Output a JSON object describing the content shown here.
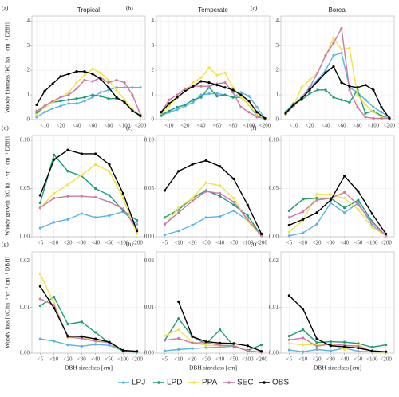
{
  "chart_data": [
    {
      "type": "line",
      "panel_label": "(a)",
      "title": "Tropical",
      "ylabel": "Woody biomass [kC ha⁻¹ cm⁻¹ DBH]",
      "legend": "bottom",
      "grid": true,
      "categories": [
        null,
        "<10",
        null,
        "<20",
        null,
        "<40",
        null,
        "<60",
        null,
        "<80",
        null,
        "<100",
        null,
        "<200"
      ],
      "ylim": [
        0,
        4.2
      ],
      "yticks": [
        0,
        1,
        2,
        3,
        4
      ],
      "series": [
        {
          "name": "LPJ",
          "color": "#56b4e9",
          "values": [
            0.1,
            0.3,
            0.45,
            0.55,
            0.65,
            0.65,
            0.75,
            0.9,
            1.1,
            1.2,
            1.3,
            1.3,
            1.3,
            1.3
          ]
        },
        {
          "name": "LPD",
          "color": "#1b9e77",
          "values": [
            0.25,
            0.55,
            0.7,
            0.75,
            0.8,
            0.85,
            0.9,
            1.0,
            0.95,
            0.85,
            0.85,
            0.75,
            0.4,
            0.15
          ]
        },
        {
          "name": "PPA",
          "color": "#f0e442",
          "values": [
            0.2,
            0.5,
            0.7,
            0.9,
            1.1,
            1.5,
            1.8,
            2.05,
            1.9,
            1.6,
            1.2,
            0.8,
            0.4,
            0.1
          ]
        },
        {
          "name": "SEC",
          "color": "#cc79a7",
          "values": [
            0.35,
            0.55,
            0.75,
            0.9,
            1.0,
            1.25,
            1.6,
            1.55,
            1.7,
            1.5,
            1.6,
            1.5,
            1.0,
            0.2
          ]
        },
        {
          "name": "OBS",
          "color": "#000000",
          "values": [
            0.6,
            1.15,
            1.45,
            1.75,
            1.85,
            1.95,
            1.95,
            1.85,
            1.65,
            1.3,
            0.9,
            0.7,
            0.35,
            0.15
          ]
        }
      ]
    },
    {
      "type": "line",
      "panel_label": "(b)",
      "title": "Temperate",
      "grid": true,
      "categories": [
        null,
        "<10",
        null,
        "<20",
        null,
        "<40",
        null,
        "<60",
        null,
        "<80",
        null,
        "<100",
        null,
        "<200"
      ],
      "ylim": [
        0,
        4.2
      ],
      "yticks": [
        0,
        1,
        2,
        3,
        4
      ],
      "series": [
        {
          "name": "LPJ",
          "color": "#56b4e9",
          "values": [
            0.15,
            0.3,
            0.4,
            0.55,
            0.7,
            1.0,
            1.05,
            1.05,
            1.0,
            0.9,
            1.1,
            0.95,
            0.5,
            0.05
          ]
        },
        {
          "name": "LPD",
          "color": "#1b9e77",
          "values": [
            0.2,
            0.35,
            0.5,
            0.6,
            0.8,
            0.9,
            1.3,
            0.95,
            1.0,
            0.9,
            0.9,
            0.6,
            0.15,
            0.05
          ]
        },
        {
          "name": "PPA",
          "color": "#f0e442",
          "values": [
            0.25,
            0.55,
            0.9,
            1.15,
            1.5,
            1.7,
            2.1,
            1.8,
            1.9,
            1.3,
            0.9,
            0.6,
            0.2,
            0.05
          ]
        },
        {
          "name": "SEC",
          "color": "#cc79a7",
          "values": [
            0.3,
            0.8,
            1.0,
            1.25,
            1.35,
            1.35,
            1.35,
            1.45,
            1.5,
            1.1,
            0.5,
            0.3,
            0.1,
            0.05
          ]
        },
        {
          "name": "OBS",
          "color": "#000000",
          "values": [
            0.3,
            0.65,
            0.9,
            1.15,
            1.35,
            1.55,
            1.5,
            1.4,
            1.3,
            1.2,
            1.0,
            0.75,
            0.3,
            0.05
          ]
        }
      ]
    },
    {
      "type": "line",
      "panel_label": "(c)",
      "title": "Boreal",
      "grid": true,
      "categories": [
        null,
        "<10",
        null,
        "<20",
        null,
        "<40",
        null,
        "<60",
        null,
        "<80",
        null,
        "<100",
        null,
        "<200"
      ],
      "ylim": [
        0,
        4.2
      ],
      "yticks": [
        0,
        1,
        2,
        3,
        4
      ],
      "series": [
        {
          "name": "LPJ",
          "color": "#56b4e9",
          "values": [
            0.2,
            0.6,
            0.9,
            1.3,
            1.6,
            2.0,
            2.6,
            2.7,
            1.3,
            1.1,
            0.8,
            0.5,
            0.3,
            0.1
          ]
        },
        {
          "name": "LPD",
          "color": "#1b9e77",
          "values": [
            0.3,
            0.65,
            0.8,
            1.05,
            1.2,
            1.2,
            0.9,
            0.8,
            0.7,
            1.2,
            0.25,
            0.35,
            0.15,
            0.05
          ]
        },
        {
          "name": "PPA",
          "color": "#f0e442",
          "values": [
            0.2,
            0.55,
            1.3,
            1.6,
            1.9,
            2.6,
            3.3,
            2.85,
            2.9,
            1.0,
            0.6,
            0.3,
            0.1,
            0.05
          ]
        },
        {
          "name": "SEC",
          "color": "#cc79a7",
          "values": [
            0.25,
            0.55,
            0.85,
            1.3,
            1.9,
            2.6,
            3.1,
            3.7,
            1.2,
            0.5,
            0.1,
            0.05,
            0.05,
            0.05
          ]
        },
        {
          "name": "OBS",
          "color": "#000000",
          "values": [
            0.25,
            0.6,
            0.85,
            1.2,
            1.55,
            1.9,
            2.15,
            1.5,
            1.35,
            1.3,
            1.4,
            1.2,
            0.5,
            0.05
          ]
        }
      ]
    },
    {
      "type": "line",
      "panel_label": "(d)",
      "ylabel": "Woody growth [kC ha⁻¹ yr⁻¹ cm⁻¹ DBH]",
      "grid": true,
      "categories": [
        "<5",
        "<10",
        "<20",
        "<30",
        "<40",
        "<50",
        "<100",
        "<200"
      ],
      "ylim": [
        0,
        0.105
      ],
      "yticks": [
        {
          "value": 0,
          "label": "0.00"
        },
        {
          "value": 0.05,
          "label": "0.05"
        },
        {
          "value": 0.1,
          "label": "0.10"
        }
      ],
      "series": [
        {
          "name": "LPJ",
          "color": "#56b4e9",
          "values": [
            0.009,
            0.015,
            0.018,
            0.024,
            0.02,
            0.022,
            0.026,
            0.013
          ]
        },
        {
          "name": "LPD",
          "color": "#1b9e77",
          "values": [
            0.035,
            0.085,
            0.068,
            0.063,
            0.05,
            0.043,
            0.027,
            0.017
          ]
        },
        {
          "name": "PPA",
          "color": "#f0e442",
          "values": [
            0.03,
            0.045,
            0.054,
            0.064,
            0.075,
            0.068,
            0.04,
            0.003
          ]
        },
        {
          "name": "SEC",
          "color": "#cc79a7",
          "values": [
            0.03,
            0.04,
            0.042,
            0.042,
            0.041,
            0.036,
            0.029,
            0.008
          ]
        },
        {
          "name": "OBS",
          "color": "#000000",
          "values": [
            0.043,
            0.08,
            0.09,
            0.086,
            0.086,
            0.075,
            0.045,
            0.006
          ]
        }
      ]
    },
    {
      "type": "line",
      "panel_label": "(e)",
      "grid": true,
      "categories": [
        "<5",
        "<10",
        "<20",
        "<30",
        "<40",
        "<50",
        "<100",
        "<200"
      ],
      "ylim": [
        0,
        0.105
      ],
      "yticks": [
        {
          "value": 0,
          "label": "0.00"
        },
        {
          "value": 0.05,
          "label": "0.05"
        },
        {
          "value": 0.1,
          "label": "0.10"
        }
      ],
      "series": [
        {
          "name": "LPJ",
          "color": "#56b4e9",
          "values": [
            0.002,
            0.006,
            0.012,
            0.02,
            0.021,
            0.027,
            0.017,
            0.001
          ]
        },
        {
          "name": "LPD",
          "color": "#1b9e77",
          "values": [
            0.02,
            0.028,
            0.04,
            0.048,
            0.042,
            0.033,
            0.022,
            0.001
          ]
        },
        {
          "name": "PPA",
          "color": "#f0e442",
          "values": [
            0.012,
            0.03,
            0.04,
            0.056,
            0.053,
            0.04,
            0.016,
            0.001
          ]
        },
        {
          "name": "SEC",
          "color": "#cc79a7",
          "values": [
            0.013,
            0.025,
            0.037,
            0.047,
            0.045,
            0.036,
            0.018,
            0.001
          ]
        },
        {
          "name": "OBS",
          "color": "#000000",
          "values": [
            0.048,
            0.068,
            0.075,
            0.079,
            0.073,
            0.06,
            0.033,
            0.003
          ]
        }
      ]
    },
    {
      "type": "line",
      "panel_label": "(f)",
      "grid": true,
      "categories": [
        "<5",
        "<10",
        "<20",
        "<30",
        "<40",
        "<50",
        "<100",
        "<200"
      ],
      "ylim": [
        0,
        0.105
      ],
      "yticks": [
        {
          "value": 0,
          "label": "0.00"
        },
        {
          "value": 0.05,
          "label": "0.05"
        },
        {
          "value": 0.1,
          "label": "0.10"
        }
      ],
      "series": [
        {
          "name": "LPJ",
          "color": "#56b4e9",
          "values": [
            0.001,
            0.004,
            0.013,
            0.035,
            0.025,
            0.035,
            0.012,
            0.001
          ]
        },
        {
          "name": "LPD",
          "color": "#1b9e77",
          "values": [
            0.027,
            0.039,
            0.04,
            0.04,
            0.03,
            0.038,
            0.016,
            0.001
          ]
        },
        {
          "name": "PPA",
          "color": "#f0e442",
          "values": [
            0.005,
            0.017,
            0.044,
            0.044,
            0.04,
            0.028,
            0.01,
            0.001
          ]
        },
        {
          "name": "SEC",
          "color": "#cc79a7",
          "values": [
            0.02,
            0.026,
            0.038,
            0.04,
            0.046,
            0.033,
            0.015,
            0.001
          ]
        },
        {
          "name": "OBS",
          "color": "#000000",
          "values": [
            0.012,
            0.018,
            0.025,
            0.038,
            0.063,
            0.047,
            0.024,
            0.003
          ]
        }
      ]
    },
    {
      "type": "line",
      "panel_label": "(g)",
      "ylabel": "Woody loss [kC ha⁻¹ yr⁻¹ cm⁻¹ DBH]",
      "xlabel": "DBH sizeclass [cm]",
      "grid": true,
      "categories": [
        "<5",
        "<10",
        "<20",
        "<30",
        "<40",
        "<50",
        "<100",
        "<200"
      ],
      "ylim": [
        0,
        0.022
      ],
      "yticks": [
        {
          "value": 0,
          "label": "0.00"
        },
        {
          "value": 0.01,
          "label": "0.01"
        },
        {
          "value": 0.02,
          "label": "0.02"
        }
      ],
      "series": [
        {
          "name": "LPJ",
          "color": "#56b4e9",
          "values": [
            0.0031,
            0.0026,
            0.0018,
            0.0015,
            0.0019,
            0.0017,
            0.0005,
            0.0003
          ]
        },
        {
          "name": "LPD",
          "color": "#1b9e77",
          "values": [
            0.0103,
            0.0122,
            0.0063,
            0.0068,
            0.0045,
            0.0022,
            0.0004,
            0.0002
          ]
        },
        {
          "name": "PPA",
          "color": "#f0e442",
          "values": [
            0.0172,
            0.0108,
            0.0034,
            0.0033,
            0.0028,
            0.0022,
            0.0006,
            0.0004
          ]
        },
        {
          "name": "SEC",
          "color": "#cc79a7",
          "values": [
            0.0118,
            0.0104,
            0.0035,
            0.0032,
            0.0026,
            0.0023,
            0.0006,
            0.0004
          ]
        },
        {
          "name": "OBS",
          "color": "#000000",
          "values": [
            0.0145,
            0.0098,
            0.0037,
            0.0036,
            0.0031,
            0.0024,
            0.0006,
            0.0004
          ]
        }
      ]
    },
    {
      "type": "line",
      "panel_label": "(h)",
      "xlabel": "DBH sizeclass [cm]",
      "grid": true,
      "categories": [
        "<5",
        "<10",
        "<20",
        "<30",
        "<40",
        "<50",
        "<100",
        "<200"
      ],
      "ylim": [
        0,
        0.022
      ],
      "yticks": [
        {
          "value": 0,
          "label": "0.00"
        },
        {
          "value": 0.01,
          "label": "0.01"
        },
        {
          "value": 0.02,
          "label": "0.02"
        }
      ],
      "series": [
        {
          "name": "LPJ",
          "color": "#56b4e9",
          "values": [
            0.0005,
            0.0008,
            0.001,
            0.0012,
            0.0013,
            0.0015,
            0.0005,
            0.0002
          ]
        },
        {
          "name": "LPD",
          "color": "#1b9e77",
          "values": [
            0.0028,
            0.0075,
            0.0036,
            0.002,
            0.0051,
            0.0015,
            0.0006,
            0.0018
          ]
        },
        {
          "name": "PPA",
          "color": "#f0e442",
          "values": [
            0.0038,
            0.0051,
            0.0024,
            0.0017,
            0.0016,
            0.0017,
            0.0005,
            0.0002
          ]
        },
        {
          "name": "SEC",
          "color": "#cc79a7",
          "values": [
            0.0028,
            0.0032,
            0.0022,
            0.0023,
            0.0017,
            0.0016,
            0.0005,
            0.0002
          ]
        },
        {
          "name": "OBS",
          "color": "#000000",
          "values": [
            null,
            0.0112,
            0.0036,
            0.0025,
            0.0022,
            0.0021,
            0.0016,
            0.0004
          ]
        }
      ]
    },
    {
      "type": "line",
      "panel_label": "(i)",
      "xlabel": "DBH sizeclass [cm]",
      "grid": true,
      "categories": [
        "<5",
        "<10",
        "<20",
        "<30",
        "<40",
        "<50",
        "<100",
        "<200"
      ],
      "ylim": [
        0,
        0.022
      ],
      "yticks": [
        {
          "value": 0,
          "label": "0.00"
        },
        {
          "value": 0.01,
          "label": "0.01"
        },
        {
          "value": 0.02,
          "label": "0.02"
        }
      ],
      "series": [
        {
          "name": "LPJ",
          "color": "#56b4e9",
          "values": [
            0.0007,
            0.0003,
            0.0008,
            0.0005,
            0.0011,
            0.0004,
            0.0003,
            0.0002
          ]
        },
        {
          "name": "LPD",
          "color": "#1b9e77",
          "values": [
            0.0037,
            0.0051,
            0.0023,
            0.0025,
            0.0024,
            0.0021,
            0.0013,
            0.0018
          ]
        },
        {
          "name": "PPA",
          "color": "#f0e442",
          "values": [
            0.0021,
            0.0018,
            0.0018,
            0.002,
            0.0008,
            0.0018,
            0.0003,
            0.0002
          ]
        },
        {
          "name": "SEC",
          "color": "#cc79a7",
          "values": [
            0.0029,
            0.0033,
            0.0015,
            0.002,
            0.0017,
            0.0015,
            0.0004,
            0.0003
          ]
        },
        {
          "name": "OBS",
          "color": "#000000",
          "values": [
            0.0125,
            0.0096,
            0.0031,
            0.0016,
            0.0014,
            0.0011,
            0.0005,
            0.0003
          ]
        }
      ]
    }
  ]
}
